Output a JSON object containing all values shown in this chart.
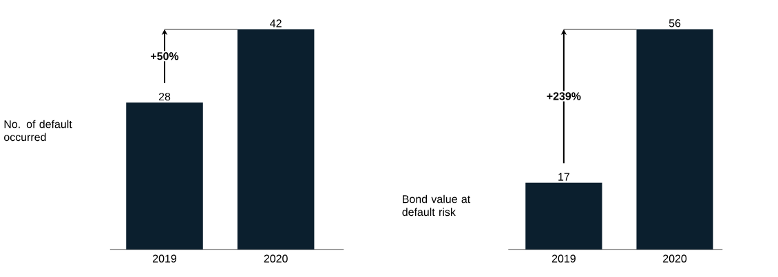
{
  "chart_data": [
    {
      "type": "bar",
      "ylabel": "No. of default occurred",
      "categories": [
        "2019",
        "2020"
      ],
      "values": [
        28,
        42
      ],
      "color": "#0b1f2e",
      "data_labels": true,
      "annotations": [
        "+50%"
      ],
      "ylim": [
        0,
        42
      ]
    },
    {
      "type": "bar",
      "ylabel": "Bond value at default risk",
      "categories": [
        "2019",
        "2020"
      ],
      "values": [
        17,
        56
      ],
      "color": "#0b1f2e",
      "data_labels": true,
      "annotations": [
        "+239%"
      ],
      "ylim": [
        0,
        56
      ]
    }
  ]
}
